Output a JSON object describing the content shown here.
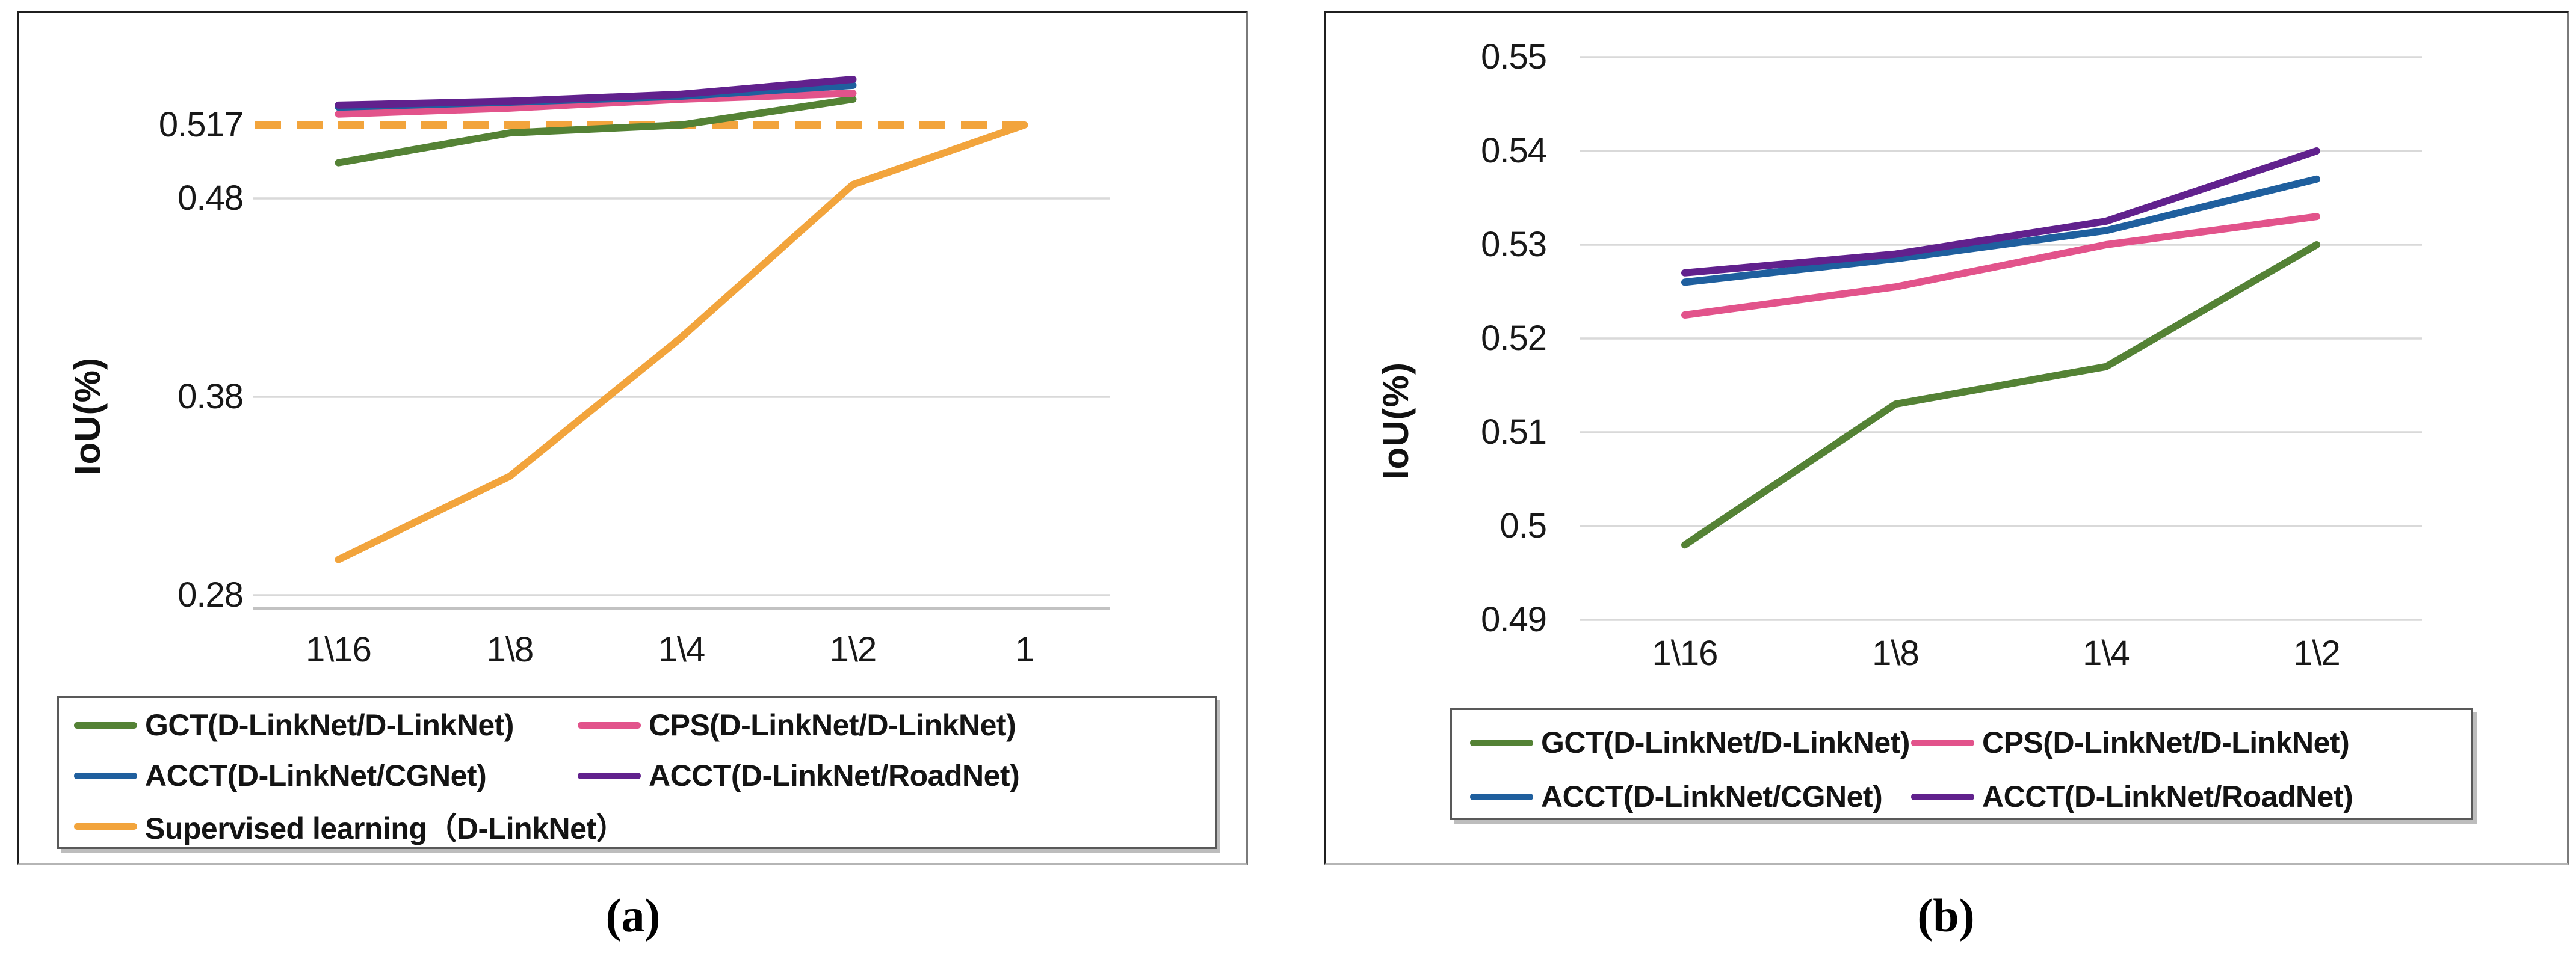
{
  "captions": [
    {
      "text": "(a)"
    },
    {
      "text": "(b)"
    }
  ],
  "chart_data": [
    {
      "id": "a",
      "type": "line",
      "ylabel": "IoU(%)",
      "xlabel": "",
      "x_categories": [
        "1\\16",
        "1\\8",
        "1\\4",
        "1\\2",
        "1"
      ],
      "y_ticks": [
        {
          "label": "0.517",
          "value": 0.517
        },
        {
          "label": "0.48",
          "value": 0.48
        },
        {
          "label": "0.38",
          "value": 0.38
        },
        {
          "label": "0.28",
          "value": 0.28
        }
      ],
      "gridline_values": [
        0.48,
        0.38,
        0.28
      ],
      "ylim": [
        0.272,
        0.558
      ],
      "grid": true,
      "legend_position": "bottom-left-box",
      "series": [
        {
          "name": "GCT(D-LinkNet/D-LinkNet)",
          "color": "#548235",
          "dash": "solid",
          "values": [
            0.498,
            0.513,
            0.517,
            0.53
          ]
        },
        {
          "name": "CPS(D-LinkNet/D-LinkNet)",
          "color": "#E2538B",
          "dash": "solid",
          "values": [
            0.5225,
            0.5255,
            0.53,
            0.533
          ]
        },
        {
          "name": "ACCT(D-LinkNet/CGNet)",
          "color": "#1F5F9E",
          "dash": "solid",
          "values": [
            0.526,
            0.5285,
            0.5315,
            0.537
          ]
        },
        {
          "name": "ACCT(D-LinkNet/RoadNet)",
          "color": "#61218D",
          "dash": "solid",
          "values": [
            0.527,
            0.529,
            0.5325,
            0.54
          ]
        },
        {
          "name": "Supervised learning（D-LinkNet）",
          "color": "#F2A43C",
          "dash": "solid",
          "values": [
            0.298,
            0.34,
            0.41,
            0.487,
            0.517
          ]
        }
      ],
      "baseline": {
        "value": 0.517,
        "color": "#F2A43C",
        "dash": "dashed"
      }
    },
    {
      "id": "b",
      "type": "line",
      "ylabel": "IoU(%)",
      "xlabel": "",
      "x_categories": [
        "1\\16",
        "1\\8",
        "1\\4",
        "1\\2"
      ],
      "y_ticks": [
        {
          "label": "0.55",
          "value": 0.55
        },
        {
          "label": "0.54",
          "value": 0.54
        },
        {
          "label": "0.53",
          "value": 0.53
        },
        {
          "label": "0.52",
          "value": 0.52
        },
        {
          "label": "0.51",
          "value": 0.51
        },
        {
          "label": "0.5",
          "value": 0.5
        },
        {
          "label": "0.49",
          "value": 0.49
        }
      ],
      "gridline_values": [
        0.55,
        0.54,
        0.53,
        0.52,
        0.51,
        0.5,
        0.49
      ],
      "ylim": [
        0.49,
        0.553
      ],
      "grid": true,
      "legend_position": "bottom-box",
      "series": [
        {
          "name": "GCT(D-LinkNet/D-LinkNet)",
          "color": "#548235",
          "dash": "solid",
          "values": [
            0.498,
            0.513,
            0.517,
            0.53
          ]
        },
        {
          "name": "CPS(D-LinkNet/D-LinkNet)",
          "color": "#E2538B",
          "dash": "solid",
          "values": [
            0.5225,
            0.5255,
            0.53,
            0.533
          ]
        },
        {
          "name": "ACCT(D-LinkNet/CGNet)",
          "color": "#1F5F9E",
          "dash": "solid",
          "values": [
            0.526,
            0.5285,
            0.5315,
            0.537
          ]
        },
        {
          "name": "ACCT(D-LinkNet/RoadNet)",
          "color": "#61218D",
          "dash": "solid",
          "values": [
            0.527,
            0.529,
            0.5325,
            0.54
          ]
        }
      ]
    }
  ]
}
